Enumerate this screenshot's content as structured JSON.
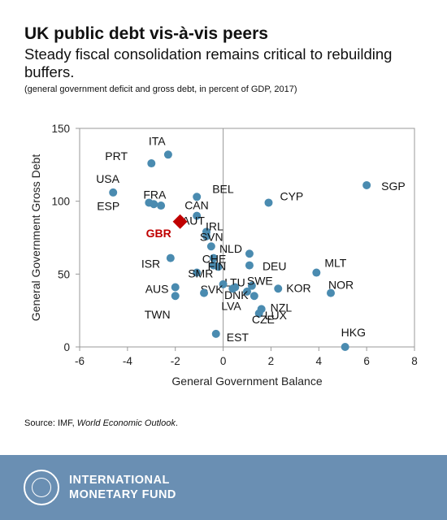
{
  "header": {
    "title": "UK public debt vis-à-vis peers",
    "subtitle": "Steady fiscal consolidation remains critical to rebuilding buffers.",
    "note": "(general government deficit and gross debt, in percent of GDP, 2017)"
  },
  "source": {
    "prefix": "Source: IMF, ",
    "publication": "World Economic Outlook",
    "suffix": "."
  },
  "footer": {
    "org_line1": "INTERNATIONAL",
    "org_line2": "MONETARY FUND",
    "logo_icon": "imf-seal-icon"
  },
  "chart_data": {
    "type": "scatter",
    "xlabel": "General Government Balance",
    "ylabel": "General Government Gross Debt",
    "xlim": [
      -6,
      8
    ],
    "ylim": [
      0,
      150
    ],
    "xticks": [
      -6,
      -4,
      -2,
      0,
      2,
      4,
      6,
      8
    ],
    "yticks": [
      0,
      50,
      100,
      150
    ],
    "grid": false,
    "colors": {
      "point": "#4a8bb0",
      "highlight": "#c00000",
      "axis": "#999999"
    },
    "points": [
      {
        "label": "ITA",
        "x": -2.3,
        "y": 132
      },
      {
        "label": "PRT",
        "x": -3.0,
        "y": 126
      },
      {
        "label": "USA",
        "x": -4.6,
        "y": 106
      },
      {
        "label": "FRA",
        "x": -3.1,
        "y": 99
      },
      {
        "label": "",
        "x": -2.6,
        "y": 97
      },
      {
        "label": "BEL",
        "x": -1.1,
        "y": 103
      },
      {
        "label": "CAN",
        "x": -1.1,
        "y": 90
      },
      {
        "label": "ESP",
        "x": -2.9,
        "y": 98
      },
      {
        "label": "AUT",
        "x": -0.7,
        "y": 79
      },
      {
        "label": "IRL",
        "x": -0.7,
        "y": 76
      },
      {
        "label": "SVN",
        "x": -0.5,
        "y": 69
      },
      {
        "label": "",
        "x": -0.4,
        "y": 61
      },
      {
        "label": "NLD",
        "x": 1.1,
        "y": 64
      },
      {
        "label": "DEU",
        "x": 1.1,
        "y": 56
      },
      {
        "label": "CHE",
        "x": -0.4,
        "y": 56
      },
      {
        "label": "FIN",
        "x": -0.2,
        "y": 55
      },
      {
        "label": "SMR",
        "x": -1.1,
        "y": 51
      },
      {
        "label": "LTU",
        "x": 0.5,
        "y": 41
      },
      {
        "label": "SWE",
        "x": 1.2,
        "y": 42
      },
      {
        "label": "DNK",
        "x": 1.0,
        "y": 38
      },
      {
        "label": "SVK",
        "x": 0.0,
        "y": 43
      },
      {
        "label": "",
        "x": -0.8,
        "y": 37
      },
      {
        "label": "ISR",
        "x": -2.2,
        "y": 61
      },
      {
        "label": "AUS",
        "x": -2.0,
        "y": 41
      },
      {
        "label": "TWN",
        "x": -2.0,
        "y": 35
      },
      {
        "label": "LVA",
        "x": 0.4,
        "y": 40
      },
      {
        "label": "CYP",
        "x": 1.9,
        "y": 99
      },
      {
        "label": "SGP",
        "x": 6.0,
        "y": 111
      },
      {
        "label": "MLT",
        "x": 3.9,
        "y": 51
      },
      {
        "label": "NOR",
        "x": 4.5,
        "y": 37
      },
      {
        "label": "KOR",
        "x": 2.3,
        "y": 40
      },
      {
        "label": "NZL",
        "x": 1.6,
        "y": 26
      },
      {
        "label": "LUX",
        "x": 1.5,
        "y": 23
      },
      {
        "label": "CZE",
        "x": 1.3,
        "y": 35
      },
      {
        "label": "EST",
        "x": -0.3,
        "y": 9
      },
      {
        "label": "HKG",
        "x": 5.1,
        "y": 0
      }
    ],
    "highlight": {
      "label": "GBR",
      "x": -1.8,
      "y": 86
    }
  }
}
